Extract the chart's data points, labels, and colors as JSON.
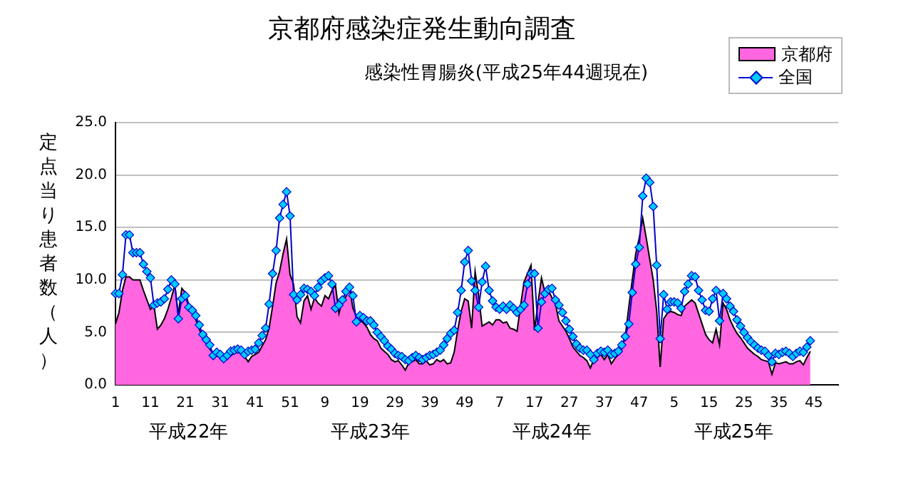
{
  "chart_data": {
    "type": "area",
    "title": "京都府感染症発生動向調査",
    "subtitle": "感染性胃腸炎(平成25年44週現在)",
    "ylabel": "定点当り患者数（人）",
    "categories": [
      "1",
      null,
      null,
      null,
      null,
      null,
      null,
      null,
      null,
      null,
      "11",
      null,
      null,
      null,
      null,
      null,
      null,
      null,
      null,
      null,
      "21",
      null,
      null,
      null,
      null,
      null,
      null,
      null,
      null,
      null,
      "31",
      null,
      null,
      null,
      null,
      null,
      null,
      null,
      null,
      null,
      "41",
      null,
      null,
      null,
      null,
      null,
      null,
      null,
      null,
      null,
      "51",
      null,
      null,
      null,
      null,
      null,
      null,
      null,
      null,
      null,
      "9",
      null,
      null,
      null,
      null,
      null,
      null,
      null,
      null,
      null,
      "19",
      null,
      null,
      null,
      null,
      null,
      null,
      null,
      null,
      null,
      "29",
      null,
      null,
      null,
      null,
      null,
      null,
      null,
      null,
      null,
      "39",
      null,
      null,
      null,
      null,
      null,
      null,
      null,
      null,
      null,
      "49",
      null,
      null,
      null,
      null,
      null,
      null,
      null,
      null,
      null,
      "7",
      null,
      null,
      null,
      null,
      null,
      null,
      null,
      null,
      null,
      "17",
      null,
      null,
      null,
      null,
      null,
      null,
      null,
      null,
      null,
      "27",
      null,
      null,
      null,
      null,
      null,
      null,
      null,
      null,
      null,
      "37",
      null,
      null,
      null,
      null,
      null,
      null,
      null,
      null,
      null,
      "47",
      null,
      null,
      null,
      null,
      null,
      null,
      null,
      null,
      null,
      "5",
      null,
      null,
      null,
      null,
      null,
      null,
      null,
      null,
      null,
      "15",
      null,
      null,
      null,
      null,
      null,
      null,
      null,
      null,
      null,
      "25",
      null,
      null,
      null,
      null,
      null,
      null,
      null,
      null,
      null,
      "35",
      null,
      null,
      null,
      null,
      null,
      null,
      null,
      null,
      null,
      "45",
      null,
      null,
      null,
      null,
      null,
      null,
      null
    ],
    "series": [
      {
        "name": "京都府",
        "color": "#ff66e0",
        "values": [
          5.8,
          6.9,
          9.0,
          10.3,
          10.3,
          10.0,
          10.0,
          10.0,
          9.0,
          8.1,
          7.2,
          7.6,
          5.3,
          5.7,
          6.3,
          7.2,
          8.3,
          9.5,
          6.7,
          9.2,
          8.8,
          7.6,
          6.8,
          6.2,
          5.3,
          4.5,
          3.9,
          3.4,
          3.0,
          2.8,
          2.6,
          2.5,
          2.5,
          2.8,
          3.0,
          3.1,
          3.0,
          2.7,
          2.2,
          2.7,
          2.9,
          3.1,
          3.7,
          4.3,
          5.4,
          7.5,
          9.7,
          10.8,
          12.5,
          13.9,
          10.5,
          9.6,
          6.5,
          5.9,
          8.0,
          8.5,
          7.2,
          8.3,
          7.8,
          7.5,
          8.5,
          8.2,
          9.0,
          9.5,
          6.8,
          8.1,
          8.4,
          9.3,
          7.3,
          6.5,
          6.2,
          5.9,
          5.5,
          4.8,
          4.4,
          4.2,
          3.5,
          3.2,
          2.9,
          2.4,
          2.2,
          2.3,
          1.9,
          1.4,
          2.1,
          2.2,
          2.4,
          2.0,
          2.0,
          2.3,
          1.9,
          2.0,
          2.4,
          2.2,
          2.4,
          2.0,
          2.1,
          3.1,
          5.2,
          7.0,
          8.2,
          8.0,
          5.4,
          10.8,
          8.5,
          5.6,
          5.8,
          6.0,
          5.7,
          6.2,
          6.2,
          5.9,
          6.0,
          5.4,
          5.3,
          5.1,
          7.5,
          9.8,
          10.6,
          11.4,
          5.2,
          7.8,
          10.2,
          8.8,
          9.0,
          8.3,
          7.7,
          6.1,
          5.6,
          5.1,
          4.4,
          3.6,
          3.2,
          2.8,
          2.6,
          2.3,
          1.6,
          2.4,
          2.6,
          2.9,
          2.4,
          2.9,
          2.0,
          2.5,
          2.9,
          3.4,
          4.6,
          7.4,
          10.0,
          12.5,
          14.0,
          15.9,
          14.0,
          12.0,
          10.0,
          7.0,
          1.7,
          6.3,
          6.8,
          7.0,
          6.9,
          6.7,
          6.6,
          7.5,
          7.8,
          8.1,
          7.8,
          6.8,
          5.8,
          4.8,
          4.3,
          4.0,
          5.3,
          3.8,
          7.8,
          7.2,
          6.2,
          5.5,
          4.9,
          4.5,
          4.0,
          3.5,
          3.2,
          2.9,
          2.7,
          2.4,
          2.3,
          2.2,
          1.0,
          2.1,
          2.0,
          2.1,
          2.2,
          2.0,
          2.0,
          2.2,
          2.3,
          1.9,
          2.6,
          3.2,
          null,
          null,
          null,
          null,
          null,
          null,
          null,
          null
        ]
      },
      {
        "name": "全国",
        "type": "line",
        "marker": "diamond",
        "color": "#0000cc",
        "values": [
          8.7,
          8.7,
          10.5,
          14.3,
          14.3,
          12.6,
          12.6,
          12.6,
          11.5,
          10.8,
          10.2,
          7.6,
          7.8,
          7.9,
          8.2,
          9.1,
          10.0,
          9.6,
          6.3,
          8.2,
          8.5,
          7.4,
          7.1,
          6.6,
          5.7,
          4.8,
          4.3,
          3.8,
          2.8,
          3.1,
          2.9,
          2.5,
          2.8,
          3.2,
          3.3,
          3.4,
          3.3,
          2.9,
          3.2,
          3.3,
          3.4,
          4.0,
          4.7,
          5.4,
          7.7,
          10.6,
          12.8,
          15.9,
          17.2,
          18.4,
          16.1,
          8.6,
          8.1,
          8.6,
          9.2,
          9.1,
          8.9,
          8.5,
          9.3,
          9.9,
          10.2,
          10.4,
          9.6,
          7.3,
          7.6,
          8.1,
          8.9,
          9.3,
          8.5,
          6.0,
          6.6,
          6.4,
          6.1,
          6.1,
          5.7,
          5.0,
          4.6,
          4.2,
          3.7,
          3.4,
          3.0,
          2.8,
          2.7,
          2.4,
          2.3,
          2.6,
          2.8,
          2.6,
          2.4,
          2.6,
          2.8,
          2.9,
          3.1,
          3.3,
          3.8,
          4.4,
          4.9,
          5.2,
          6.9,
          9.0,
          11.7,
          12.8,
          9.9,
          9.0,
          7.4,
          9.8,
          11.3,
          9.0,
          8.0,
          7.4,
          7.2,
          7.5,
          7.2,
          7.6,
          7.3,
          6.9,
          7.2,
          7.6,
          9.6,
          10.6,
          10.6,
          5.4,
          7.9,
          8.7,
          9.1,
          9.2,
          8.1,
          7.6,
          6.9,
          6.1,
          5.3,
          4.6,
          3.9,
          3.5,
          3.3,
          3.3,
          2.9,
          2.4,
          3.0,
          3.2,
          3.1,
          3.3,
          2.9,
          3.0,
          3.2,
          3.8,
          4.6,
          5.8,
          8.8,
          11.5,
          13.1,
          18.0,
          19.7,
          19.3,
          17.0,
          11.4,
          4.4,
          8.6,
          7.2,
          7.9,
          7.9,
          7.8,
          7.3,
          8.9,
          9.6,
          10.4,
          10.3,
          9.0,
          8.1,
          7.1,
          7.0,
          8.2,
          9.0,
          6.1,
          8.7,
          8.2,
          7.5,
          7.0,
          6.2,
          5.6,
          5.0,
          4.5,
          4.1,
          3.8,
          3.5,
          3.3,
          3.2,
          2.8,
          2.2,
          3.0,
          2.9,
          3.1,
          3.2,
          3.0,
          2.7,
          3.0,
          3.2,
          3.1,
          3.6,
          4.2,
          null,
          null,
          null,
          null,
          null,
          null,
          null,
          null
        ]
      }
    ],
    "ylim": [
      0,
      25
    ],
    "yticks": [
      {
        "value": 0,
        "label": "0.0"
      },
      {
        "value": 5,
        "label": "5.0"
      },
      {
        "value": 10,
        "label": "10.0"
      },
      {
        "value": 15,
        "label": "15.0"
      },
      {
        "value": 20,
        "label": "20.0"
      },
      {
        "value": 25,
        "label": "25.0"
      }
    ],
    "grid": "y",
    "legend": "top right",
    "annotations": [
      "平成22年",
      "平成23年",
      "平成24年",
      "平成25年"
    ]
  }
}
